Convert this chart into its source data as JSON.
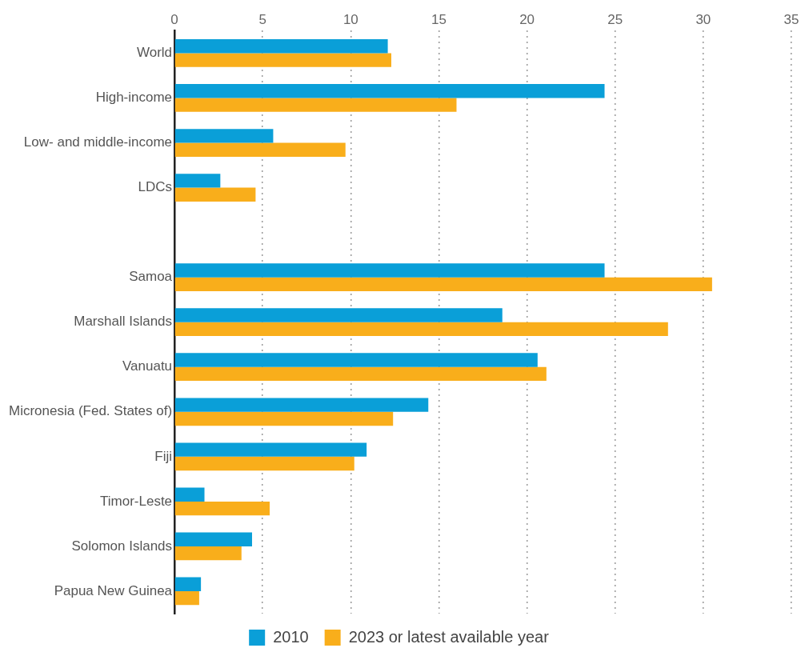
{
  "chart_data": {
    "type": "bar",
    "orientation": "horizontal",
    "categories": [
      "World",
      "High-income",
      "Low- and middle-income",
      "LDCs",
      null,
      "Samoa",
      "Marshall Islands",
      "Vanuatu",
      "Micronesia (Fed. States of)",
      "Fiji",
      "Timor-Leste",
      "Solomon Islands",
      "Papua New Guinea"
    ],
    "series": [
      {
        "name": "2010",
        "color": "#0a9fd8",
        "values": [
          12.1,
          24.4,
          5.6,
          2.6,
          null,
          24.4,
          18.6,
          20.6,
          14.4,
          10.9,
          1.7,
          4.4,
          1.5
        ]
      },
      {
        "name": "2023 or latest available year",
        "color": "#f9ae1b",
        "values": [
          12.3,
          16.0,
          9.7,
          4.6,
          null,
          30.5,
          28.0,
          21.1,
          12.4,
          10.2,
          5.4,
          3.8,
          1.4
        ]
      }
    ],
    "xlim": [
      0,
      35
    ],
    "xticks": [
      0,
      5,
      10,
      15,
      20,
      25,
      30,
      35
    ],
    "grid": "x",
    "legend": "bottom"
  }
}
